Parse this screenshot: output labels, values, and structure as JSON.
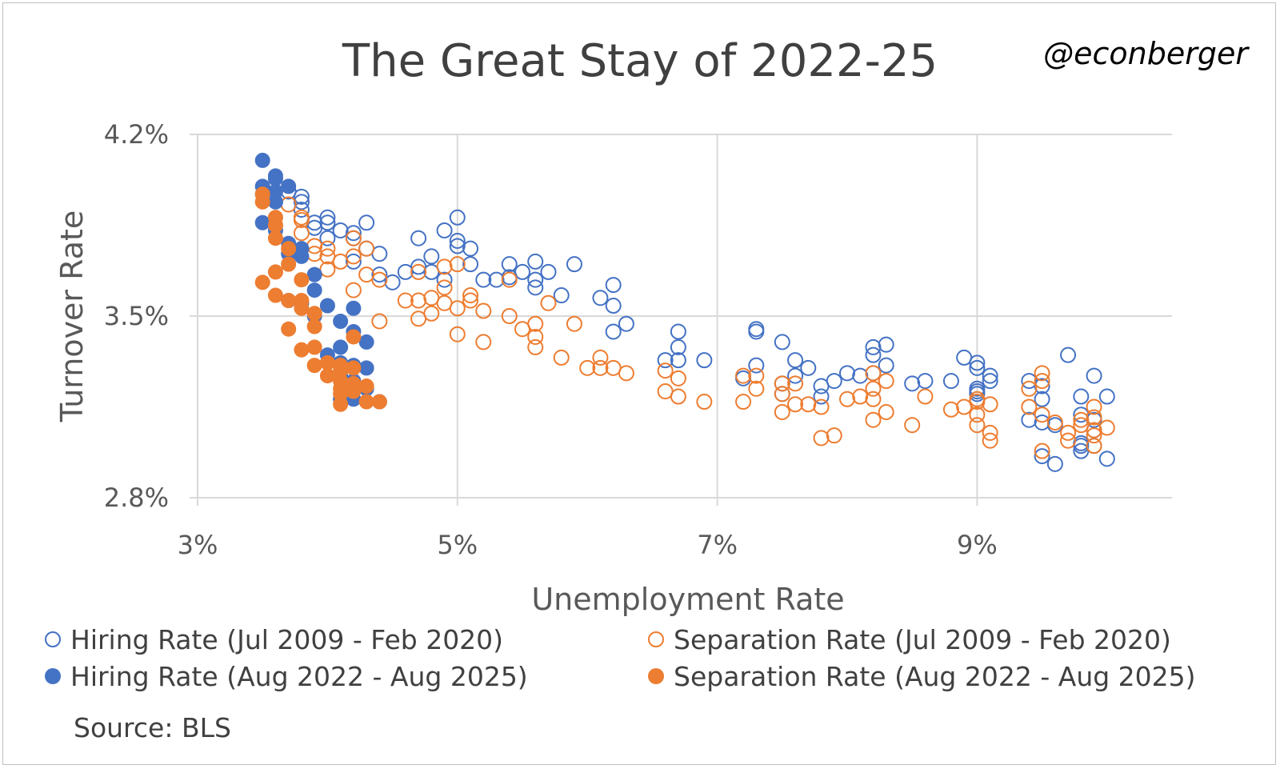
{
  "chart_data": {
    "type": "scatter",
    "title": "The Great Stay of 2022-25",
    "credit": "@econberger",
    "xlabel": "Unemployment Rate",
    "ylabel": "Turnover Rate",
    "xlim": [
      3,
      10.5
    ],
    "ylim": [
      2.8,
      4.2
    ],
    "xticks": [
      3,
      5,
      7,
      9
    ],
    "xtick_labels": [
      "3%",
      "5%",
      "7%",
      "9%"
    ],
    "yticks": [
      2.8,
      3.5,
      4.2
    ],
    "ytick_labels": [
      "2.8%",
      "3.5%",
      "4.2%"
    ],
    "grid": true,
    "source": "Source: BLS",
    "series": [
      {
        "name": "Hiring Rate (Jul 2009 - Feb 2020)",
        "style": "open",
        "color": "#4472C4",
        "points": [
          [
            9.5,
            3.23
          ],
          [
            9.4,
            3.25
          ],
          [
            9.5,
            3.18
          ],
          [
            9.6,
            3.08
          ],
          [
            9.5,
            3.09
          ],
          [
            9.4,
            3.1
          ],
          [
            9.8,
            3.19
          ],
          [
            9.7,
            3.35
          ],
          [
            9.9,
            3.27
          ],
          [
            9.8,
            3.12
          ],
          [
            9.9,
            3.1
          ],
          [
            9.8,
            3.01
          ],
          [
            9.8,
            3.0
          ],
          [
            9.9,
            3.0
          ],
          [
            10.0,
            3.19
          ],
          [
            9.9,
            3.06
          ],
          [
            9.5,
            2.96
          ],
          [
            9.6,
            2.93
          ],
          [
            9.8,
            2.98
          ],
          [
            10.0,
            2.95
          ],
          [
            9.1,
            3.27
          ],
          [
            9.0,
            3.2
          ],
          [
            9.0,
            3.22
          ],
          [
            9.0,
            3.3
          ],
          [
            8.9,
            3.34
          ],
          [
            9.0,
            3.21
          ],
          [
            9.1,
            3.25
          ],
          [
            9.0,
            3.32
          ],
          [
            8.8,
            3.25
          ],
          [
            8.6,
            3.25
          ],
          [
            8.5,
            3.24
          ],
          [
            8.3,
            3.39
          ],
          [
            8.2,
            3.38
          ],
          [
            8.2,
            3.35
          ],
          [
            8.3,
            3.31
          ],
          [
            8.2,
            3.28
          ],
          [
            8.1,
            3.27
          ],
          [
            8.0,
            3.28
          ],
          [
            7.9,
            3.25
          ],
          [
            7.8,
            3.23
          ],
          [
            7.8,
            3.19
          ],
          [
            7.7,
            3.3
          ],
          [
            7.6,
            3.27
          ],
          [
            7.5,
            3.24
          ],
          [
            7.5,
            3.2
          ],
          [
            7.6,
            3.33
          ],
          [
            7.5,
            3.4
          ],
          [
            7.3,
            3.45
          ],
          [
            7.3,
            3.44
          ],
          [
            7.3,
            3.31
          ],
          [
            7.2,
            3.26
          ],
          [
            6.9,
            3.33
          ],
          [
            6.7,
            3.33
          ],
          [
            6.6,
            3.33
          ],
          [
            6.7,
            3.38
          ],
          [
            6.7,
            3.44
          ],
          [
            6.3,
            3.47
          ],
          [
            6.2,
            3.54
          ],
          [
            6.2,
            3.62
          ],
          [
            6.1,
            3.57
          ],
          [
            6.2,
            3.44
          ],
          [
            5.9,
            3.7
          ],
          [
            5.8,
            3.58
          ],
          [
            5.7,
            3.67
          ],
          [
            5.6,
            3.61
          ],
          [
            5.6,
            3.64
          ],
          [
            5.6,
            3.71
          ],
          [
            5.5,
            3.67
          ],
          [
            5.4,
            3.7
          ],
          [
            5.4,
            3.65
          ],
          [
            5.3,
            3.64
          ],
          [
            5.2,
            3.64
          ],
          [
            5.1,
            3.7
          ],
          [
            5.1,
            3.76
          ],
          [
            5.0,
            3.88
          ],
          [
            5.0,
            3.79
          ],
          [
            5.0,
            3.77
          ],
          [
            4.9,
            3.83
          ],
          [
            4.9,
            3.64
          ],
          [
            4.8,
            3.67
          ],
          [
            4.8,
            3.73
          ],
          [
            4.7,
            3.69
          ],
          [
            4.7,
            3.8
          ],
          [
            4.6,
            3.67
          ],
          [
            4.4,
            3.74
          ],
          [
            4.4,
            3.66
          ],
          [
            4.3,
            3.86
          ],
          [
            4.3,
            3.76
          ],
          [
            4.2,
            3.71
          ],
          [
            4.2,
            3.82
          ],
          [
            4.2,
            3.8
          ],
          [
            4.1,
            3.83
          ],
          [
            4.0,
            3.86
          ],
          [
            4.0,
            3.88
          ],
          [
            4.0,
            3.8
          ],
          [
            3.9,
            3.86
          ],
          [
            3.9,
            3.84
          ],
          [
            3.8,
            3.96
          ],
          [
            3.8,
            3.91
          ],
          [
            3.7,
            3.98
          ],
          [
            3.8,
            3.94
          ],
          [
            4.5,
            3.63
          ]
        ]
      },
      {
        "name": "Separation Rate (Jul 2009 - Feb 2020)",
        "style": "open",
        "color": "#ED7D31",
        "points": [
          [
            9.5,
            3.28
          ],
          [
            9.5,
            3.25
          ],
          [
            9.4,
            3.22
          ],
          [
            9.5,
            3.12
          ],
          [
            9.6,
            3.09
          ],
          [
            9.4,
            3.15
          ],
          [
            9.7,
            3.05
          ],
          [
            9.8,
            3.1
          ],
          [
            9.9,
            3.11
          ],
          [
            9.9,
            3.15
          ],
          [
            9.8,
            3.08
          ],
          [
            9.9,
            3.06
          ],
          [
            9.7,
            3.02
          ],
          [
            9.9,
            3.04
          ],
          [
            10.0,
            3.07
          ],
          [
            9.9,
            3.0
          ],
          [
            9.5,
            2.98
          ],
          [
            9.1,
            3.16
          ],
          [
            9.0,
            3.18
          ],
          [
            9.0,
            3.17
          ],
          [
            8.9,
            3.15
          ],
          [
            9.0,
            3.12
          ],
          [
            9.1,
            3.05
          ],
          [
            9.0,
            3.08
          ],
          [
            9.1,
            3.02
          ],
          [
            8.8,
            3.14
          ],
          [
            8.6,
            3.19
          ],
          [
            8.5,
            3.08
          ],
          [
            8.3,
            3.13
          ],
          [
            8.2,
            3.1
          ],
          [
            8.2,
            3.18
          ],
          [
            8.2,
            3.22
          ],
          [
            8.3,
            3.25
          ],
          [
            8.2,
            3.28
          ],
          [
            8.1,
            3.19
          ],
          [
            8.0,
            3.18
          ],
          [
            7.9,
            3.04
          ],
          [
            7.8,
            3.03
          ],
          [
            7.7,
            3.16
          ],
          [
            7.8,
            3.15
          ],
          [
            7.6,
            3.16
          ],
          [
            7.5,
            3.13
          ],
          [
            7.5,
            3.2
          ],
          [
            7.6,
            3.24
          ],
          [
            7.5,
            3.24
          ],
          [
            7.3,
            3.22
          ],
          [
            7.3,
            3.27
          ],
          [
            7.2,
            3.27
          ],
          [
            7.2,
            3.17
          ],
          [
            6.9,
            3.17
          ],
          [
            6.7,
            3.19
          ],
          [
            6.6,
            3.21
          ],
          [
            6.7,
            3.26
          ],
          [
            6.6,
            3.29
          ],
          [
            6.3,
            3.28
          ],
          [
            6.2,
            3.3
          ],
          [
            6.1,
            3.3
          ],
          [
            6.1,
            3.34
          ],
          [
            6.0,
            3.3
          ],
          [
            5.9,
            3.47
          ],
          [
            5.8,
            3.34
          ],
          [
            5.7,
            3.55
          ],
          [
            5.6,
            3.47
          ],
          [
            5.6,
            3.42
          ],
          [
            5.6,
            3.38
          ],
          [
            5.5,
            3.45
          ],
          [
            5.4,
            3.5
          ],
          [
            5.4,
            3.64
          ],
          [
            5.2,
            3.4
          ],
          [
            5.2,
            3.52
          ],
          [
            5.1,
            3.56
          ],
          [
            5.0,
            3.53
          ],
          [
            5.0,
            3.43
          ],
          [
            4.9,
            3.55
          ],
          [
            4.9,
            3.61
          ],
          [
            4.9,
            3.69
          ],
          [
            4.8,
            3.57
          ],
          [
            4.8,
            3.51
          ],
          [
            4.7,
            3.56
          ],
          [
            4.7,
            3.49
          ],
          [
            4.7,
            3.67
          ],
          [
            4.6,
            3.56
          ],
          [
            4.4,
            3.64
          ],
          [
            4.4,
            3.48
          ],
          [
            4.3,
            3.76
          ],
          [
            4.3,
            3.66
          ],
          [
            4.2,
            3.6
          ],
          [
            4.2,
            3.73
          ],
          [
            4.2,
            3.8
          ],
          [
            4.1,
            3.71
          ],
          [
            4.0,
            3.73
          ],
          [
            4.0,
            3.76
          ],
          [
            4.0,
            3.68
          ],
          [
            3.9,
            3.74
          ],
          [
            3.9,
            3.77
          ],
          [
            3.8,
            3.82
          ],
          [
            3.8,
            3.88
          ],
          [
            3.7,
            3.93
          ],
          [
            3.8,
            3.87
          ],
          [
            5.0,
            3.7
          ],
          [
            5.1,
            3.58
          ]
        ]
      },
      {
        "name": "Hiring Rate (Aug 2022 - Aug 2025)",
        "style": "filled",
        "color": "#4472C4",
        "points": [
          [
            3.5,
            4.1
          ],
          [
            3.5,
            3.86
          ],
          [
            3.6,
            4.03
          ],
          [
            3.6,
            3.98
          ],
          [
            3.7,
            4.0
          ],
          [
            3.6,
            3.94
          ],
          [
            3.5,
            3.97
          ],
          [
            3.6,
            3.83
          ],
          [
            3.7,
            3.78
          ],
          [
            3.8,
            3.76
          ],
          [
            3.7,
            3.74
          ],
          [
            3.8,
            3.73
          ],
          [
            3.9,
            3.66
          ],
          [
            3.9,
            3.6
          ],
          [
            3.8,
            3.55
          ],
          [
            3.7,
            3.56
          ],
          [
            4.0,
            3.54
          ],
          [
            4.1,
            3.48
          ],
          [
            4.2,
            3.53
          ],
          [
            3.9,
            3.5
          ],
          [
            4.2,
            3.44
          ],
          [
            4.3,
            3.4
          ],
          [
            4.1,
            3.38
          ],
          [
            4.0,
            3.35
          ],
          [
            4.1,
            3.32
          ],
          [
            4.2,
            3.31
          ],
          [
            4.3,
            3.3
          ],
          [
            4.1,
            3.27
          ],
          [
            4.2,
            3.25
          ],
          [
            4.3,
            3.22
          ],
          [
            4.1,
            3.18
          ],
          [
            4.2,
            3.18
          ],
          [
            4.4,
            3.17
          ],
          [
            3.6,
            4.04
          ],
          [
            3.5,
            4.0
          ]
        ]
      },
      {
        "name": "Separation Rate (Aug 2022 - Aug 2025)",
        "style": "filled",
        "color": "#ED7D31",
        "points": [
          [
            3.5,
            3.94
          ],
          [
            3.5,
            3.97
          ],
          [
            3.6,
            3.88
          ],
          [
            3.6,
            3.85
          ],
          [
            3.6,
            3.8
          ],
          [
            3.5,
            3.63
          ],
          [
            3.6,
            3.58
          ],
          [
            3.6,
            3.67
          ],
          [
            3.7,
            3.7
          ],
          [
            3.7,
            3.76
          ],
          [
            3.8,
            3.64
          ],
          [
            3.8,
            3.56
          ],
          [
            3.8,
            3.53
          ],
          [
            3.9,
            3.51
          ],
          [
            3.9,
            3.46
          ],
          [
            3.7,
            3.45
          ],
          [
            3.9,
            3.38
          ],
          [
            3.8,
            3.37
          ],
          [
            4.0,
            3.32
          ],
          [
            3.9,
            3.31
          ],
          [
            4.1,
            3.29
          ],
          [
            4.1,
            3.31
          ],
          [
            4.2,
            3.3
          ],
          [
            4.0,
            3.27
          ],
          [
            4.1,
            3.25
          ],
          [
            4.2,
            3.24
          ],
          [
            4.3,
            3.23
          ],
          [
            4.1,
            3.2
          ],
          [
            4.2,
            3.21
          ],
          [
            4.1,
            3.16
          ],
          [
            4.3,
            3.17
          ],
          [
            4.4,
            3.17
          ],
          [
            4.2,
            3.42
          ],
          [
            4.1,
            3.22
          ],
          [
            3.7,
            3.56
          ]
        ]
      }
    ]
  }
}
